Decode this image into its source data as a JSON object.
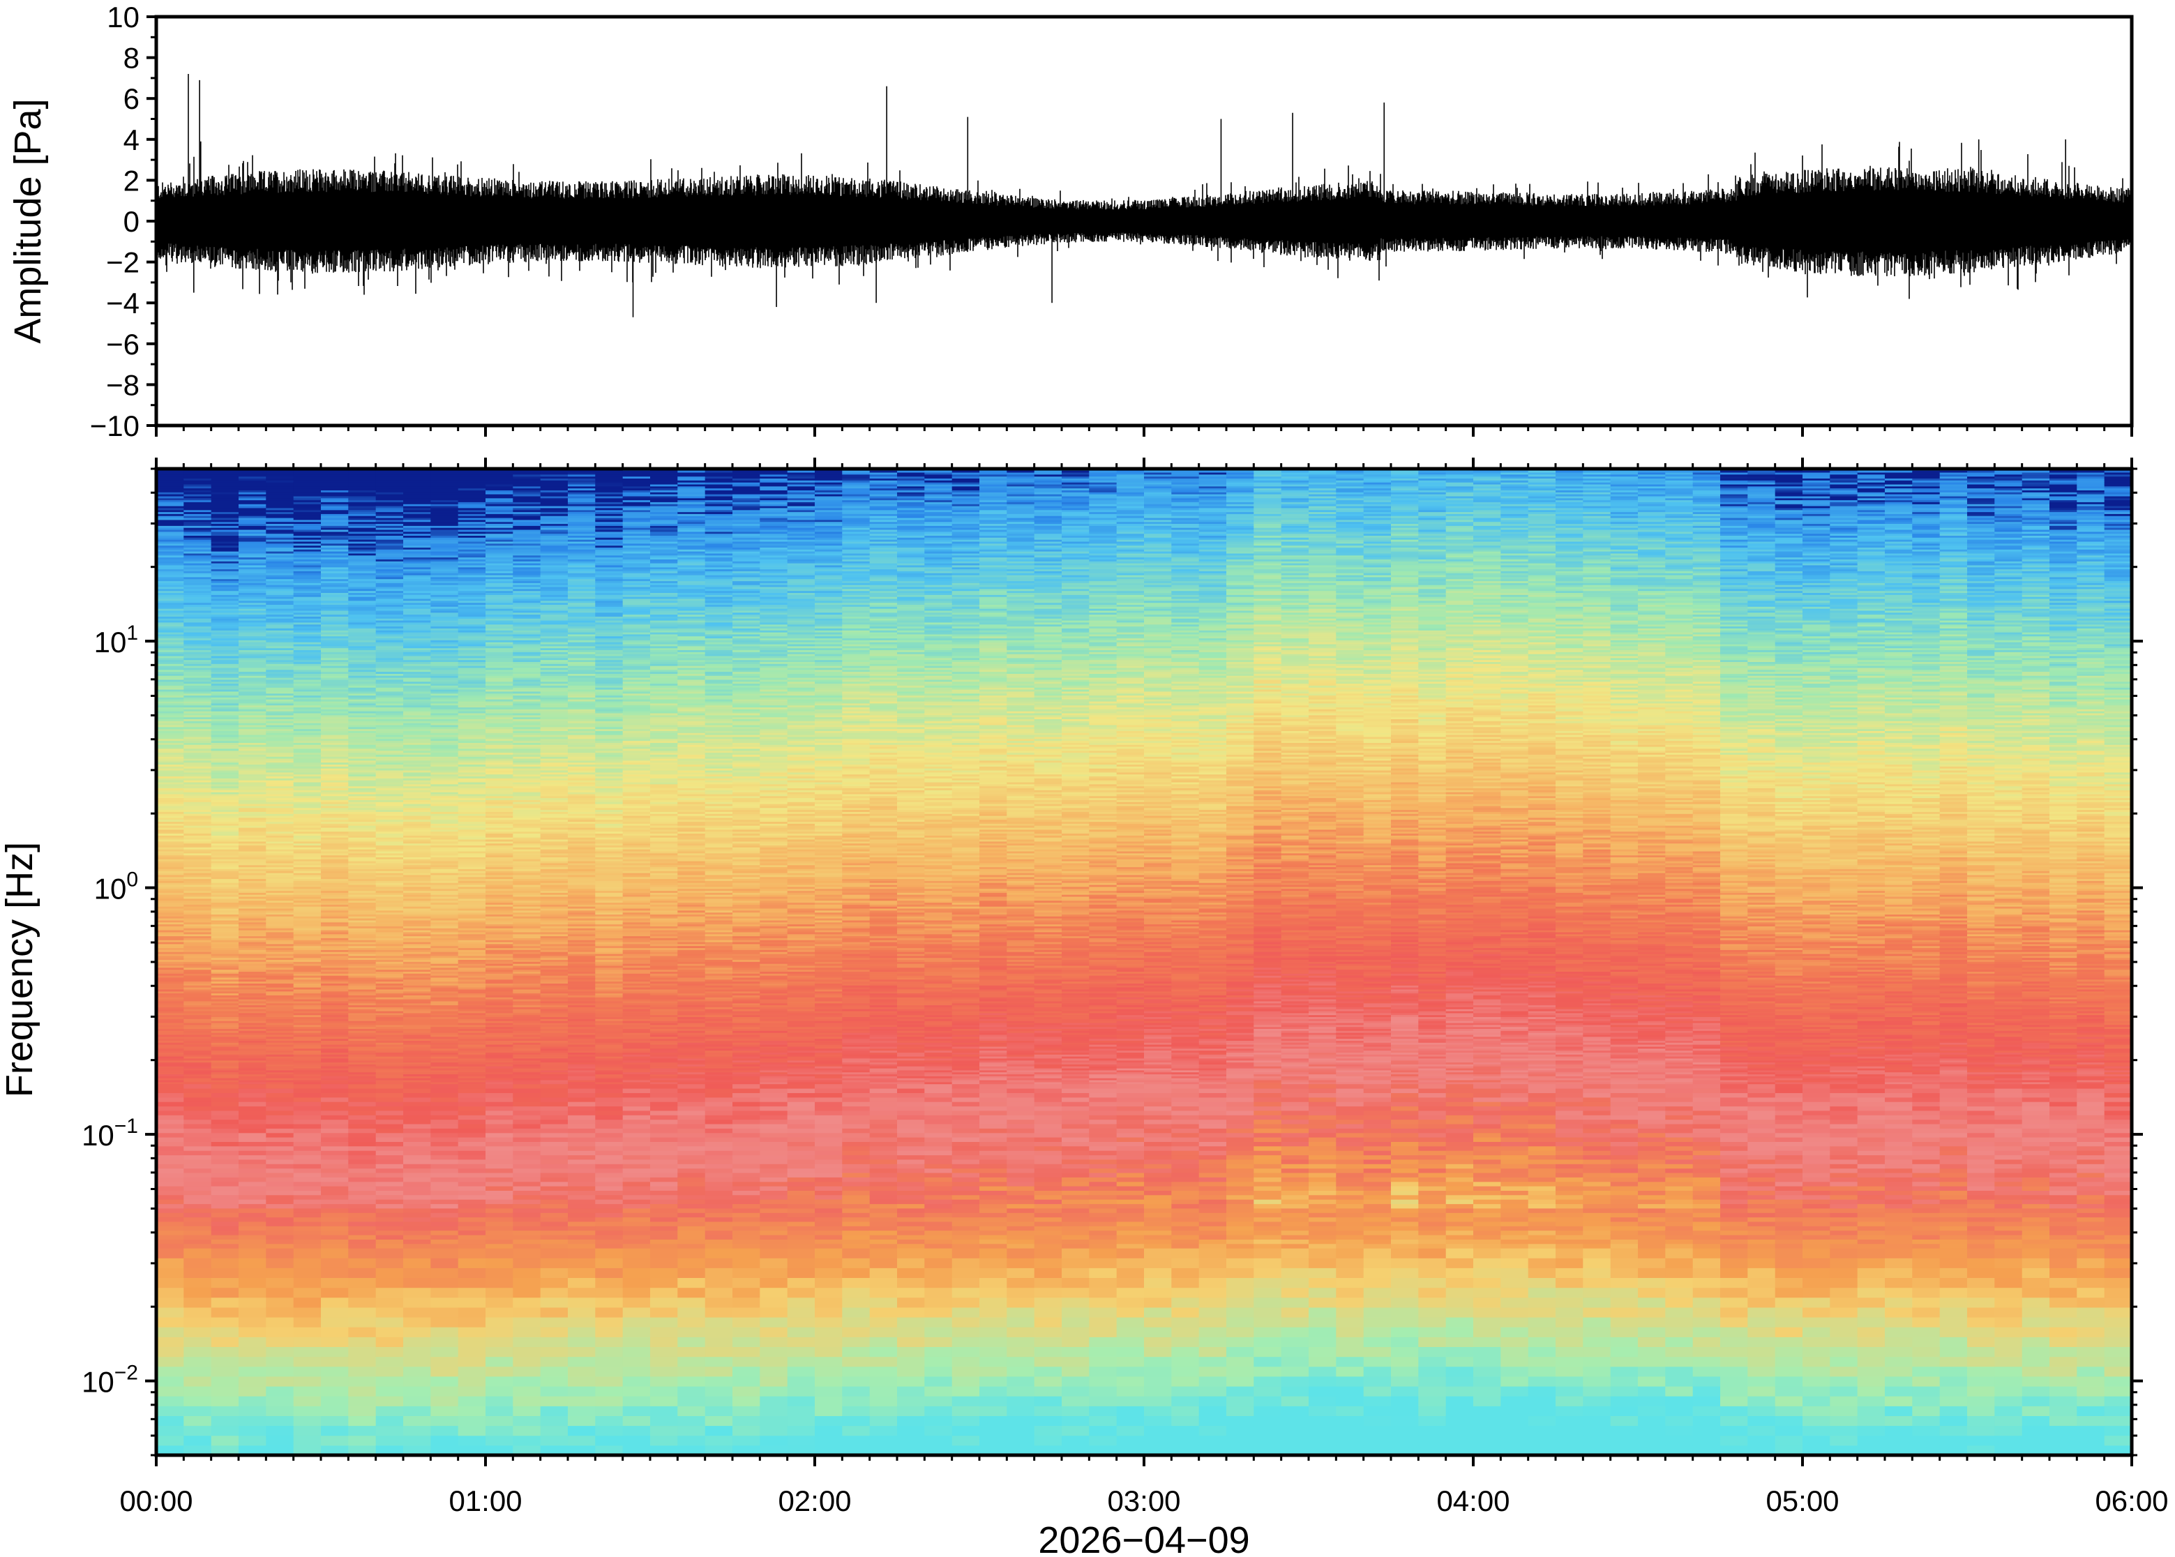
{
  "chart_data": [
    {
      "type": "line",
      "panel": "waveform",
      "ylabel": "Amplitude [Pa]",
      "ylim": [
        -10,
        10
      ],
      "yticks": [
        10,
        8,
        6,
        4,
        2,
        0,
        -2,
        -4,
        -6,
        -8,
        -10
      ],
      "ytick_labels": [
        "10",
        "8",
        "6",
        "4",
        "2",
        "0",
        "−2",
        "−4",
        "−6",
        "−8",
        "−10"
      ],
      "xlim": [
        "00:00",
        "06:00"
      ],
      "typical_range": [
        -2.5,
        2.5
      ],
      "peaks": [
        {
          "time": "00:06",
          "value": 7.2
        },
        {
          "time": "00:08",
          "value": 6.9
        },
        {
          "time": "00:08",
          "value": 3.9
        },
        {
          "time": "00:07",
          "value": -3.5
        },
        {
          "time": "01:27",
          "value": -4.7
        },
        {
          "time": "01:53",
          "value": -4.2
        },
        {
          "time": "02:13",
          "value": 6.6
        },
        {
          "time": "02:11",
          "value": -4.0
        },
        {
          "time": "02:28",
          "value": 5.1
        },
        {
          "time": "02:43",
          "value": -4.0
        },
        {
          "time": "03:14",
          "value": 5.0
        },
        {
          "time": "03:27",
          "value": 5.3
        },
        {
          "time": "03:44",
          "value": 5.8
        },
        {
          "time": "05:32",
          "value": 4.0
        },
        {
          "time": "05:48",
          "value": 4.0
        }
      ],
      "series": [
        {
          "values": []
        }
      ]
    },
    {
      "type": "heatmap",
      "panel": "spectrogram",
      "ylabel": "Frequency [Hz]",
      "xlabel": "2026−04−09",
      "y_scale": "log",
      "ylim": [
        0.005,
        50
      ],
      "yticks": [
        0.01,
        0.1,
        1,
        10
      ],
      "ytick_labels": [
        {
          "base": "10",
          "exp": "−2"
        },
        {
          "base": "10",
          "exp": "−1"
        },
        {
          "base": "10",
          "exp": "0"
        },
        {
          "base": "10",
          "exp": "1"
        }
      ],
      "xticks": [
        "00:00",
        "01:00",
        "02:00",
        "03:00",
        "04:00",
        "05:00",
        "06:00"
      ],
      "xtick_labels": [
        "00:00",
        "01:00",
        "02:00",
        "03:00",
        "04:00",
        "05:00",
        "06:00"
      ],
      "colormap": [
        "#0a1f8f",
        "#1a6fe0",
        "#3aa6f0",
        "#5fd0f0",
        "#8fe6c0",
        "#d8f09a",
        "#f3e580",
        "#f8b860",
        "#f5904e",
        "#ef6a50",
        "#f05458",
        "#f48c98"
      ],
      "band_profile": [
        {
          "freq": 0.006,
          "color": "#5ee3e8"
        },
        {
          "freq": 0.01,
          "color": "#a6edb0"
        },
        {
          "freq": 0.02,
          "color": "#f5d070"
        },
        {
          "freq": 0.03,
          "color": "#f5a050"
        },
        {
          "freq": 0.06,
          "color": "#f06a60"
        },
        {
          "freq": 0.1,
          "color": "#f08a88"
        },
        {
          "freq": 0.2,
          "color": "#f05c58"
        },
        {
          "freq": 0.5,
          "color": "#f27c55"
        },
        {
          "freq": 1,
          "color": "#f6b262"
        },
        {
          "freq": 3,
          "color": "#f2e684"
        },
        {
          "freq": 8,
          "color": "#9ee8b2"
        },
        {
          "freq": 20,
          "color": "#4fc2f0"
        },
        {
          "freq": 40,
          "color": "#2a86e8"
        },
        {
          "freq": 50,
          "color": "#0a1f8f"
        }
      ]
    }
  ]
}
